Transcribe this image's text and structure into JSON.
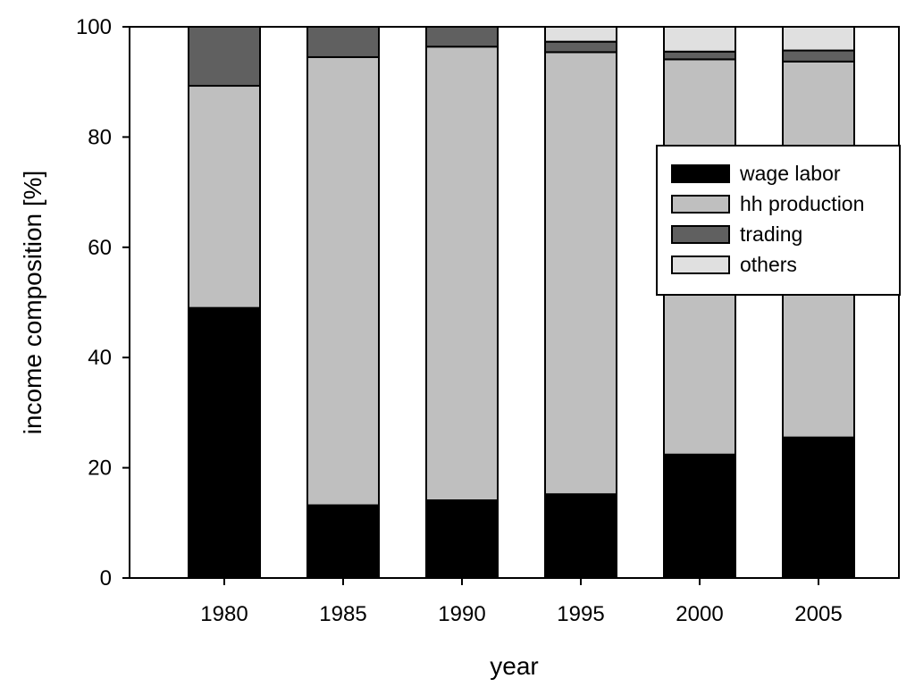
{
  "chart_data": {
    "type": "bar",
    "stacked": true,
    "categories": [
      "1980",
      "1985",
      "1990",
      "1995",
      "2000",
      "2005"
    ],
    "series": [
      {
        "name": "wage labor",
        "color": "#000000",
        "values": [
          49.0,
          13.2,
          14.1,
          15.2,
          22.4,
          25.5
        ]
      },
      {
        "name": "hh production",
        "color": "#bfbfbf",
        "values": [
          40.3,
          81.3,
          82.3,
          80.2,
          71.7,
          68.2
        ]
      },
      {
        "name": "trading",
        "color": "#606060",
        "values": [
          10.7,
          5.5,
          3.6,
          1.9,
          1.4,
          2.0
        ]
      },
      {
        "name": "others",
        "color": "#e0e0e0",
        "values": [
          0,
          0,
          0,
          2.7,
          4.5,
          4.3
        ]
      }
    ],
    "xlabel": "year",
    "ylabel": "income composition [%]",
    "ylim": [
      0,
      100
    ],
    "yticks": [
      0,
      20,
      40,
      60,
      80,
      100
    ],
    "grid": false,
    "legend": "top-right"
  }
}
